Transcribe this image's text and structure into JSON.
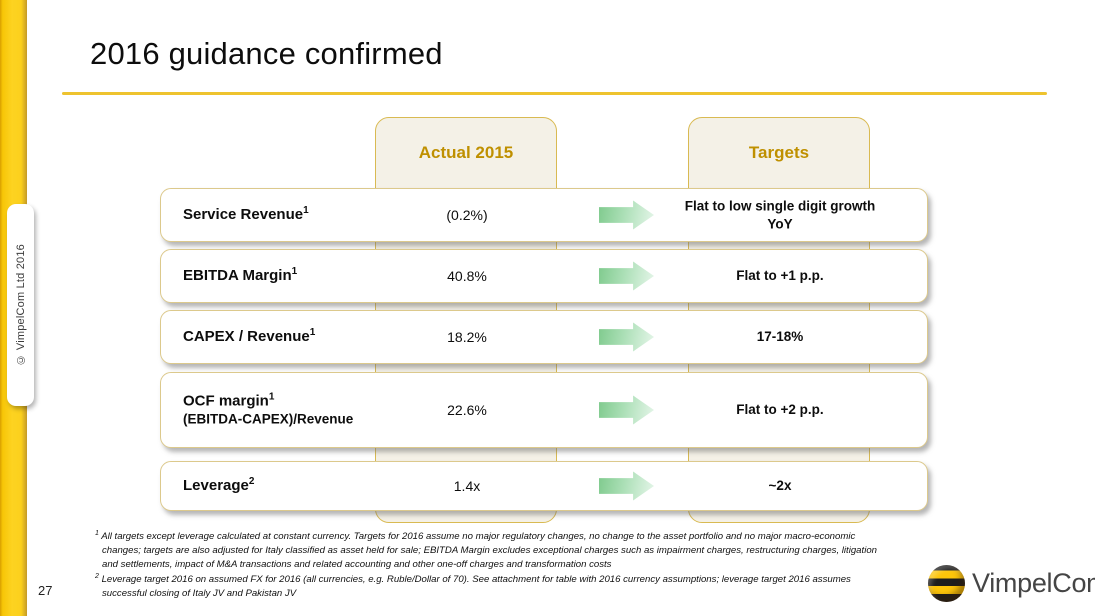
{
  "slide": {
    "title": "2016 guidance confirmed",
    "page_number": "27",
    "copyright_vertical": "© VimpelCom Ltd 2016",
    "logo_text": "VimpelCom"
  },
  "table": {
    "columns": {
      "actual": "Actual 2015",
      "targets": "Targets"
    },
    "rows": [
      {
        "label": "Service Revenue",
        "sup": "1",
        "actual": "(0.2%)",
        "target": "Flat to low single digit growth YoY"
      },
      {
        "label": "EBITDA Margin",
        "sup": "1",
        "actual": "40.8%",
        "target": "Flat to +1 p.p."
      },
      {
        "label": "CAPEX / Revenue",
        "sup": "1",
        "actual": "18.2%",
        "target": "17-18%"
      },
      {
        "label": "OCF margin",
        "sup": "1",
        "sublabel": "(EBITDA-CAPEX)/Revenue",
        "actual": "22.6%",
        "target": "Flat to +2 p.p."
      },
      {
        "label": "Leverage",
        "sup": "2",
        "actual": "1.4x",
        "target": "~2x"
      }
    ]
  },
  "footnotes": [
    {
      "marker": "1",
      "text": "All targets except leverage calculated at constant currency.  Targets for 2016 assume no major regulatory changes, no change to the asset portfolio and no major macro-economic changes; targets are also adjusted for Italy classified as asset held for sale; EBITDA Margin excludes exceptional charges such as impairment charges, restructuring charges, litigation and settlements, impact of M&A transactions and related accounting and other one-off charges and transformation costs"
    },
    {
      "marker": "2",
      "text": "Leverage target 2016 on assumed FX for 2016 (all currencies, e.g. Ruble/Dollar of 70). See attachment for table with 2016 currency assumptions; leverage target 2016 assumes successful closing of Italy JV and Pakistan JV"
    }
  ],
  "colors": {
    "accent_gold": "#eec32f",
    "bar_yellow": "#fdd321",
    "header_text_gold": "#bf9000",
    "column_fill_beige": "#f4f1e7",
    "column_border_gold": "#d9ba52",
    "row_border_gold": "#dcc98c",
    "arrow_green": "#7fca8d",
    "logo_yellow": "#fdc50a"
  }
}
